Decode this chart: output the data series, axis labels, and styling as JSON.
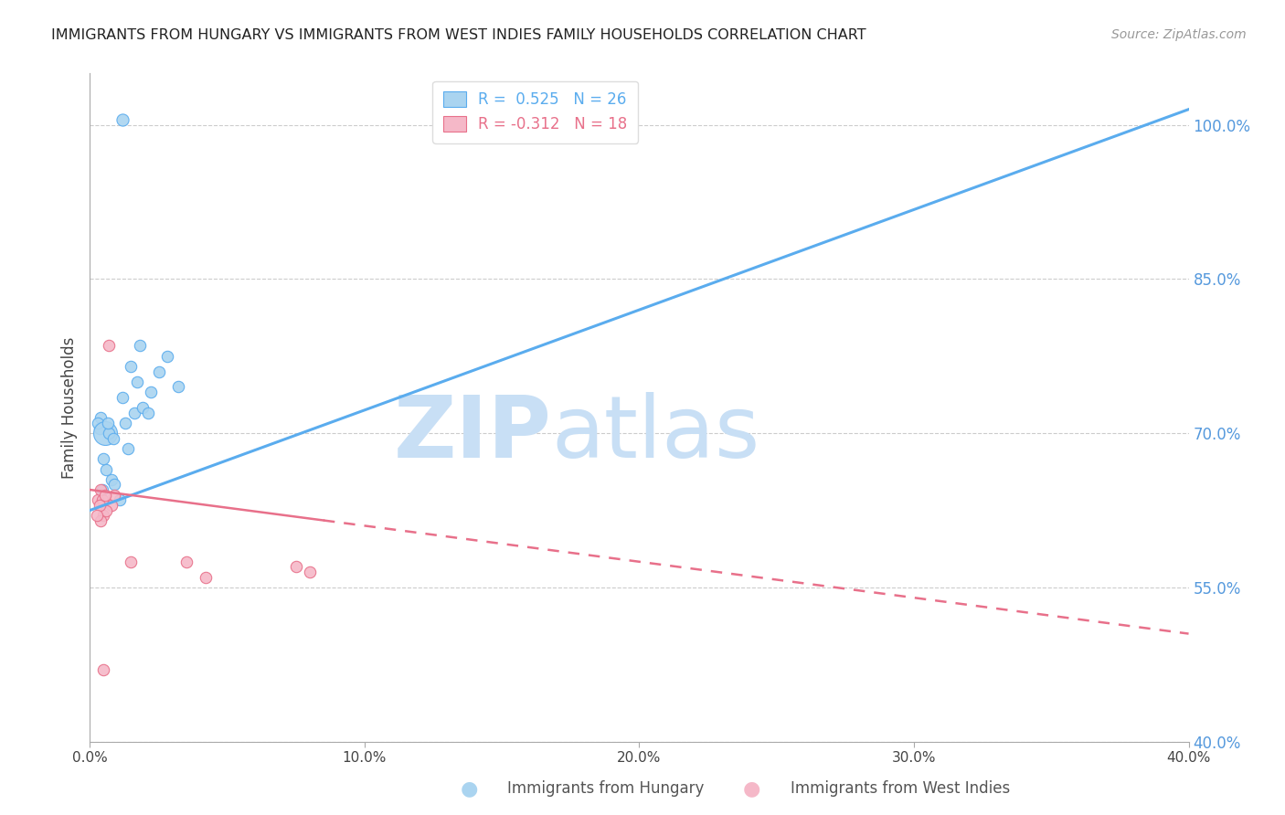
{
  "title": "IMMIGRANTS FROM HUNGARY VS IMMIGRANTS FROM WEST INDIES FAMILY HOUSEHOLDS CORRELATION CHART",
  "source": "Source: ZipAtlas.com",
  "ylabel": "Family Households",
  "x_tick_labels": [
    "0.0%",
    "10.0%",
    "20.0%",
    "30.0%",
    "40.0%"
  ],
  "x_tick_values": [
    0.0,
    10.0,
    20.0,
    30.0,
    40.0
  ],
  "y_tick_labels": [
    "40.0%",
    "55.0%",
    "70.0%",
    "85.0%",
    "100.0%"
  ],
  "y_tick_values": [
    40.0,
    55.0,
    70.0,
    85.0,
    100.0
  ],
  "xlim": [
    0.0,
    40.0
  ],
  "ylim": [
    40.0,
    105.0
  ],
  "background_color": "#ffffff",
  "grid_color": "#cccccc",
  "blue_color": "#aad4f0",
  "blue_line_color": "#5aacee",
  "pink_color": "#f5b8c8",
  "pink_line_color": "#e8708a",
  "right_axis_color": "#5599dd",
  "legend_r1": "R =  0.525   N = 26",
  "legend_r2": "R = -0.312   N = 18",
  "legend_label1": "Immigrants from Hungary",
  "legend_label2": "Immigrants from West Indies",
  "watermark_zip": "ZIP",
  "watermark_atlas": "atlas",
  "watermark_color": "#c8dff5",
  "blue_line_x0": 0.0,
  "blue_line_y0": 62.5,
  "blue_line_x1": 40.0,
  "blue_line_y1": 101.5,
  "pink_line_x0": 0.0,
  "pink_line_y0": 64.5,
  "pink_line_x1": 40.0,
  "pink_line_y1": 50.5,
  "pink_solid_end": 8.5,
  "blue_scatter_x": [
    1.2,
    1.7,
    1.5,
    1.6,
    1.9,
    2.2,
    2.5,
    1.3,
    1.4,
    0.8,
    0.6,
    0.5,
    0.4,
    0.35,
    0.3,
    0.55,
    0.7,
    0.9,
    2.8,
    3.2,
    0.45,
    0.65,
    0.85,
    1.8,
    2.1,
    1.1
  ],
  "blue_scatter_y": [
    73.5,
    75.0,
    76.5,
    72.0,
    72.5,
    74.0,
    76.0,
    71.0,
    68.5,
    65.5,
    66.5,
    67.5,
    71.5,
    70.5,
    71.0,
    70.0,
    70.0,
    65.0,
    77.5,
    74.5,
    64.5,
    71.0,
    69.5,
    78.5,
    72.0,
    63.5
  ],
  "blue_scatter_sizes": [
    80,
    80,
    80,
    80,
    80,
    80,
    80,
    80,
    80,
    80,
    80,
    80,
    80,
    80,
    80,
    350,
    80,
    80,
    80,
    80,
    80,
    80,
    80,
    80,
    80,
    80
  ],
  "blue_outlier_x": 1.2,
  "blue_outlier_y": 100.5,
  "pink_scatter_x": [
    0.3,
    0.5,
    0.8,
    0.9,
    0.6,
    0.4,
    1.5,
    0.7,
    3.5,
    4.2,
    0.45,
    0.35,
    0.25,
    0.4,
    0.55,
    7.5,
    8.0,
    0.5
  ],
  "pink_scatter_y": [
    63.5,
    62.0,
    63.0,
    64.0,
    62.5,
    61.5,
    57.5,
    78.5,
    57.5,
    56.0,
    63.5,
    63.0,
    62.0,
    64.5,
    64.0,
    57.0,
    56.5,
    47.0
  ]
}
